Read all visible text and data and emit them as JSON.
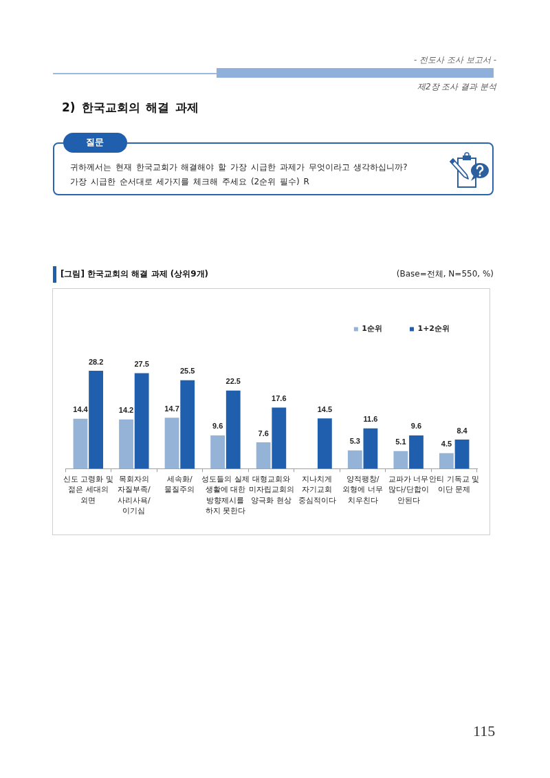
{
  "chart_data": {
    "type": "bar",
    "title": "[그림] 한국교회의 해결 과제 (상위9개)",
    "categories": [
      "신도 고령화 및\n젊은 세대의\n외면",
      "목회자의\n자질부족/\n사리사욕/\n이기심",
      "세속화/\n물질주의",
      "성도들의 실제\n생활에 대한\n방향제시를\n하지 못한다",
      "대형교회와\n미자립교회의\n양극화 현상",
      "지나치게\n자기교회\n중심적이다",
      "양적팽창/\n외형에 너무\n치우친다",
      "교파가 너무\n많다/단합이\n안된다",
      "안티 기독교 및\n이단 문제"
    ],
    "series": [
      {
        "name": "1순위",
        "color": "#95b3d7",
        "values": [
          14.4,
          14.2,
          14.7,
          9.6,
          7.6,
          null,
          5.3,
          5.1,
          4.5
        ]
      },
      {
        "name": "1+2순위",
        "color": "#1f5fad",
        "values": [
          28.2,
          27.5,
          25.5,
          22.5,
          17.6,
          14.5,
          11.6,
          9.6,
          8.4
        ]
      }
    ],
    "data_labels": true,
    "legend": "top right",
    "tick_labels": "x",
    "annotations": [
      "- 전도사 조사 보고서 -",
      "제2장 조사 결과 분석",
      "2) 한국교회의 해결 과제",
      "질문",
      "귀하께서는 현재 한국교회가 해결해야 할 가장 시급한 과제가 무엇이라고 생각하십니까?",
      "가장 시급한 순서대로 세가지를 체크해 주세요 (2순위 필수) R",
      "(Base=전체, N=550, %)",
      "115"
    ]
  }
}
